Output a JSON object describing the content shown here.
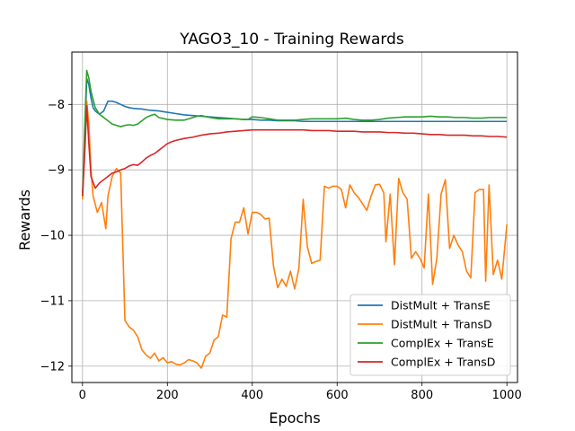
{
  "chart_data": {
    "type": "line",
    "title": "YAGO3_10 - Training Rewards",
    "xlabel": "Epochs",
    "ylabel": "Rewards",
    "xlim": [
      -25,
      1025
    ],
    "ylim": [
      -12.25,
      -7.2
    ],
    "xticks": [
      0,
      200,
      400,
      600,
      800,
      1000
    ],
    "yticks": [
      -12,
      -11,
      -10,
      -9,
      -8
    ],
    "grid": true,
    "legend_position": "bottom-right",
    "series": [
      {
        "name": "DistMult + TransE",
        "color": "#1f77b4",
        "points": [
          [
            0,
            -9.4
          ],
          [
            5,
            -8.6
          ],
          [
            10,
            -7.6
          ],
          [
            15,
            -7.7
          ],
          [
            20,
            -7.9
          ],
          [
            25,
            -8.05
          ],
          [
            30,
            -8.1
          ],
          [
            40,
            -8.15
          ],
          [
            50,
            -8.1
          ],
          [
            60,
            -7.95
          ],
          [
            70,
            -7.95
          ],
          [
            80,
            -7.97
          ],
          [
            90,
            -8.0
          ],
          [
            100,
            -8.03
          ],
          [
            110,
            -8.05
          ],
          [
            120,
            -8.06
          ],
          [
            140,
            -8.07
          ],
          [
            160,
            -8.09
          ],
          [
            180,
            -8.1
          ],
          [
            200,
            -8.12
          ],
          [
            220,
            -8.14
          ],
          [
            240,
            -8.16
          ],
          [
            260,
            -8.17
          ],
          [
            280,
            -8.18
          ],
          [
            300,
            -8.19
          ],
          [
            320,
            -8.2
          ],
          [
            340,
            -8.21
          ],
          [
            360,
            -8.22
          ],
          [
            380,
            -8.23
          ],
          [
            400,
            -8.23
          ],
          [
            420,
            -8.24
          ],
          [
            440,
            -8.24
          ],
          [
            460,
            -8.25
          ],
          [
            480,
            -8.25
          ],
          [
            500,
            -8.25
          ],
          [
            520,
            -8.26
          ],
          [
            540,
            -8.26
          ],
          [
            560,
            -8.26
          ],
          [
            580,
            -8.26
          ],
          [
            600,
            -8.26
          ],
          [
            650,
            -8.26
          ],
          [
            700,
            -8.26
          ],
          [
            750,
            -8.26
          ],
          [
            800,
            -8.26
          ],
          [
            850,
            -8.26
          ],
          [
            900,
            -8.26
          ],
          [
            950,
            -8.26
          ],
          [
            1000,
            -8.26
          ]
        ]
      },
      {
        "name": "DistMult + TransD",
        "color": "#ff7f0e",
        "points": [
          [
            0,
            -9.45
          ],
          [
            5,
            -8.6
          ],
          [
            10,
            -7.95
          ],
          [
            15,
            -8.3
          ],
          [
            20,
            -9.0
          ],
          [
            25,
            -9.4
          ],
          [
            35,
            -9.65
          ],
          [
            45,
            -9.5
          ],
          [
            55,
            -9.9
          ],
          [
            60,
            -9.4
          ],
          [
            70,
            -9.1
          ],
          [
            80,
            -8.98
          ],
          [
            90,
            -9.05
          ],
          [
            100,
            -11.3
          ],
          [
            110,
            -11.4
          ],
          [
            120,
            -11.45
          ],
          [
            130,
            -11.55
          ],
          [
            140,
            -11.75
          ],
          [
            150,
            -11.83
          ],
          [
            160,
            -11.88
          ],
          [
            170,
            -11.8
          ],
          [
            180,
            -11.92
          ],
          [
            190,
            -11.87
          ],
          [
            200,
            -11.95
          ],
          [
            210,
            -11.93
          ],
          [
            220,
            -11.97
          ],
          [
            230,
            -11.98
          ],
          [
            240,
            -11.95
          ],
          [
            250,
            -11.9
          ],
          [
            260,
            -11.92
          ],
          [
            270,
            -11.95
          ],
          [
            280,
            -12.03
          ],
          [
            290,
            -11.85
          ],
          [
            300,
            -11.8
          ],
          [
            310,
            -11.6
          ],
          [
            320,
            -11.55
          ],
          [
            330,
            -11.22
          ],
          [
            340,
            -11.25
          ],
          [
            350,
            -10.05
          ],
          [
            360,
            -9.8
          ],
          [
            370,
            -9.8
          ],
          [
            380,
            -9.58
          ],
          [
            390,
            -9.98
          ],
          [
            400,
            -9.65
          ],
          [
            410,
            -9.65
          ],
          [
            420,
            -9.68
          ],
          [
            430,
            -9.75
          ],
          [
            440,
            -9.74
          ],
          [
            450,
            -10.47
          ],
          [
            460,
            -10.8
          ],
          [
            470,
            -10.67
          ],
          [
            480,
            -10.78
          ],
          [
            490,
            -10.55
          ],
          [
            500,
            -10.82
          ],
          [
            510,
            -10.5
          ],
          [
            520,
            -9.45
          ],
          [
            530,
            -10.18
          ],
          [
            540,
            -10.43
          ],
          [
            550,
            -10.4
          ],
          [
            560,
            -10.38
          ],
          [
            570,
            -9.25
          ],
          [
            580,
            -9.28
          ],
          [
            590,
            -9.25
          ],
          [
            600,
            -9.25
          ],
          [
            610,
            -9.3
          ],
          [
            620,
            -9.58
          ],
          [
            630,
            -9.23
          ],
          [
            640,
            -9.35
          ],
          [
            650,
            -9.42
          ],
          [
            660,
            -9.52
          ],
          [
            670,
            -9.62
          ],
          [
            680,
            -9.4
          ],
          [
            690,
            -9.23
          ],
          [
            700,
            -9.22
          ],
          [
            710,
            -9.35
          ],
          [
            715,
            -10.1
          ],
          [
            725,
            -9.37
          ],
          [
            735,
            -10.45
          ],
          [
            745,
            -9.13
          ],
          [
            755,
            -9.35
          ],
          [
            765,
            -9.45
          ],
          [
            775,
            -10.35
          ],
          [
            785,
            -10.25
          ],
          [
            795,
            -10.35
          ],
          [
            805,
            -10.5
          ],
          [
            815,
            -9.37
          ],
          [
            825,
            -10.75
          ],
          [
            835,
            -10.35
          ],
          [
            845,
            -9.37
          ],
          [
            855,
            -9.15
          ],
          [
            865,
            -10.2
          ],
          [
            875,
            -10.0
          ],
          [
            885,
            -10.15
          ],
          [
            895,
            -10.25
          ],
          [
            905,
            -10.55
          ],
          [
            915,
            -10.65
          ],
          [
            925,
            -9.35
          ],
          [
            935,
            -9.3
          ],
          [
            945,
            -9.3
          ],
          [
            950,
            -10.7
          ],
          [
            958,
            -9.23
          ],
          [
            968,
            -10.6
          ],
          [
            978,
            -10.38
          ],
          [
            988,
            -10.67
          ],
          [
            1000,
            -9.83
          ]
        ]
      },
      {
        "name": "ComplEx + TransE",
        "color": "#2ca02c",
        "points": [
          [
            0,
            -9.4
          ],
          [
            5,
            -8.4
          ],
          [
            10,
            -7.48
          ],
          [
            15,
            -7.6
          ],
          [
            20,
            -7.8
          ],
          [
            30,
            -8.05
          ],
          [
            40,
            -8.15
          ],
          [
            50,
            -8.2
          ],
          [
            60,
            -8.25
          ],
          [
            70,
            -8.3
          ],
          [
            80,
            -8.32
          ],
          [
            90,
            -8.34
          ],
          [
            100,
            -8.32
          ],
          [
            110,
            -8.31
          ],
          [
            120,
            -8.32
          ],
          [
            130,
            -8.3
          ],
          [
            140,
            -8.25
          ],
          [
            150,
            -8.2
          ],
          [
            160,
            -8.17
          ],
          [
            170,
            -8.15
          ],
          [
            180,
            -8.2
          ],
          [
            200,
            -8.23
          ],
          [
            220,
            -8.24
          ],
          [
            240,
            -8.24
          ],
          [
            250,
            -8.22
          ],
          [
            260,
            -8.2
          ],
          [
            270,
            -8.18
          ],
          [
            280,
            -8.17
          ],
          [
            300,
            -8.2
          ],
          [
            320,
            -8.22
          ],
          [
            340,
            -8.22
          ],
          [
            360,
            -8.22
          ],
          [
            380,
            -8.23
          ],
          [
            390,
            -8.23
          ],
          [
            400,
            -8.19
          ],
          [
            420,
            -8.2
          ],
          [
            440,
            -8.22
          ],
          [
            460,
            -8.24
          ],
          [
            480,
            -8.24
          ],
          [
            500,
            -8.24
          ],
          [
            520,
            -8.23
          ],
          [
            540,
            -8.22
          ],
          [
            560,
            -8.22
          ],
          [
            580,
            -8.22
          ],
          [
            600,
            -8.22
          ],
          [
            620,
            -8.21
          ],
          [
            640,
            -8.23
          ],
          [
            660,
            -8.24
          ],
          [
            680,
            -8.24
          ],
          [
            700,
            -8.23
          ],
          [
            720,
            -8.21
          ],
          [
            740,
            -8.2
          ],
          [
            760,
            -8.19
          ],
          [
            780,
            -8.19
          ],
          [
            800,
            -8.19
          ],
          [
            820,
            -8.18
          ],
          [
            840,
            -8.19
          ],
          [
            860,
            -8.19
          ],
          [
            880,
            -8.2
          ],
          [
            900,
            -8.2
          ],
          [
            920,
            -8.21
          ],
          [
            940,
            -8.21
          ],
          [
            960,
            -8.2
          ],
          [
            980,
            -8.2
          ],
          [
            1000,
            -8.2
          ]
        ]
      },
      {
        "name": "ComplEx + TransD",
        "color": "#d62728",
        "points": [
          [
            0,
            -9.4
          ],
          [
            5,
            -8.8
          ],
          [
            10,
            -8.02
          ],
          [
            15,
            -8.6
          ],
          [
            20,
            -9.1
          ],
          [
            30,
            -9.28
          ],
          [
            40,
            -9.2
          ],
          [
            50,
            -9.15
          ],
          [
            60,
            -9.1
          ],
          [
            70,
            -9.05
          ],
          [
            80,
            -9.03
          ],
          [
            90,
            -9.0
          ],
          [
            100,
            -8.98
          ],
          [
            110,
            -8.94
          ],
          [
            120,
            -8.92
          ],
          [
            130,
            -8.93
          ],
          [
            140,
            -8.88
          ],
          [
            150,
            -8.82
          ],
          [
            160,
            -8.78
          ],
          [
            170,
            -8.75
          ],
          [
            180,
            -8.7
          ],
          [
            190,
            -8.65
          ],
          [
            200,
            -8.6
          ],
          [
            210,
            -8.57
          ],
          [
            220,
            -8.55
          ],
          [
            240,
            -8.52
          ],
          [
            260,
            -8.5
          ],
          [
            280,
            -8.47
          ],
          [
            300,
            -8.45
          ],
          [
            320,
            -8.44
          ],
          [
            340,
            -8.42
          ],
          [
            360,
            -8.41
          ],
          [
            380,
            -8.4
          ],
          [
            400,
            -8.39
          ],
          [
            420,
            -8.39
          ],
          [
            440,
            -8.39
          ],
          [
            460,
            -8.39
          ],
          [
            480,
            -8.39
          ],
          [
            500,
            -8.39
          ],
          [
            520,
            -8.39
          ],
          [
            540,
            -8.4
          ],
          [
            560,
            -8.4
          ],
          [
            580,
            -8.4
          ],
          [
            600,
            -8.41
          ],
          [
            620,
            -8.41
          ],
          [
            640,
            -8.41
          ],
          [
            660,
            -8.42
          ],
          [
            680,
            -8.42
          ],
          [
            700,
            -8.42
          ],
          [
            720,
            -8.43
          ],
          [
            740,
            -8.43
          ],
          [
            760,
            -8.44
          ],
          [
            780,
            -8.44
          ],
          [
            800,
            -8.45
          ],
          [
            820,
            -8.46
          ],
          [
            840,
            -8.46
          ],
          [
            860,
            -8.47
          ],
          [
            880,
            -8.47
          ],
          [
            900,
            -8.47
          ],
          [
            920,
            -8.48
          ],
          [
            940,
            -8.48
          ],
          [
            960,
            -8.49
          ],
          [
            980,
            -8.49
          ],
          [
            1000,
            -8.5
          ]
        ]
      }
    ]
  }
}
